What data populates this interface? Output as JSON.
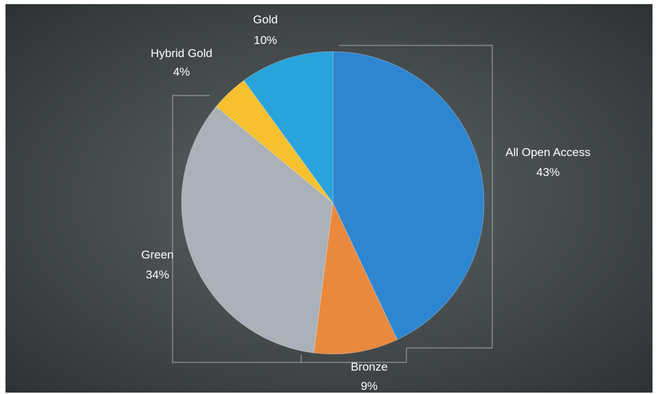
{
  "chart_data": {
    "type": "pie",
    "title": "",
    "slices": [
      {
        "label": "All Open Access",
        "percent_label": "43%",
        "value": 43,
        "color": "#2e86d0"
      },
      {
        "label": "Bronze",
        "percent_label": "9%",
        "value": 9,
        "color": "#e8893e"
      },
      {
        "label": "Green",
        "percent_label": "34%",
        "value": 34,
        "color": "#aab1b8"
      },
      {
        "label": "Hybrid Gold",
        "percent_label": "4%",
        "value": 4,
        "color": "#f6c02f"
      },
      {
        "label": "Gold",
        "percent_label": "10%",
        "value": 10,
        "color": "#29a3dc"
      }
    ],
    "start": "12 o'clock",
    "direction": "clockwise",
    "legend": "none",
    "data_labels": "outside with leader lines"
  },
  "colors": {
    "background_center": "#5c6366",
    "background_edge": "#2e3233",
    "label_text": "#ffffff",
    "leader_line": "#a9adb0"
  }
}
